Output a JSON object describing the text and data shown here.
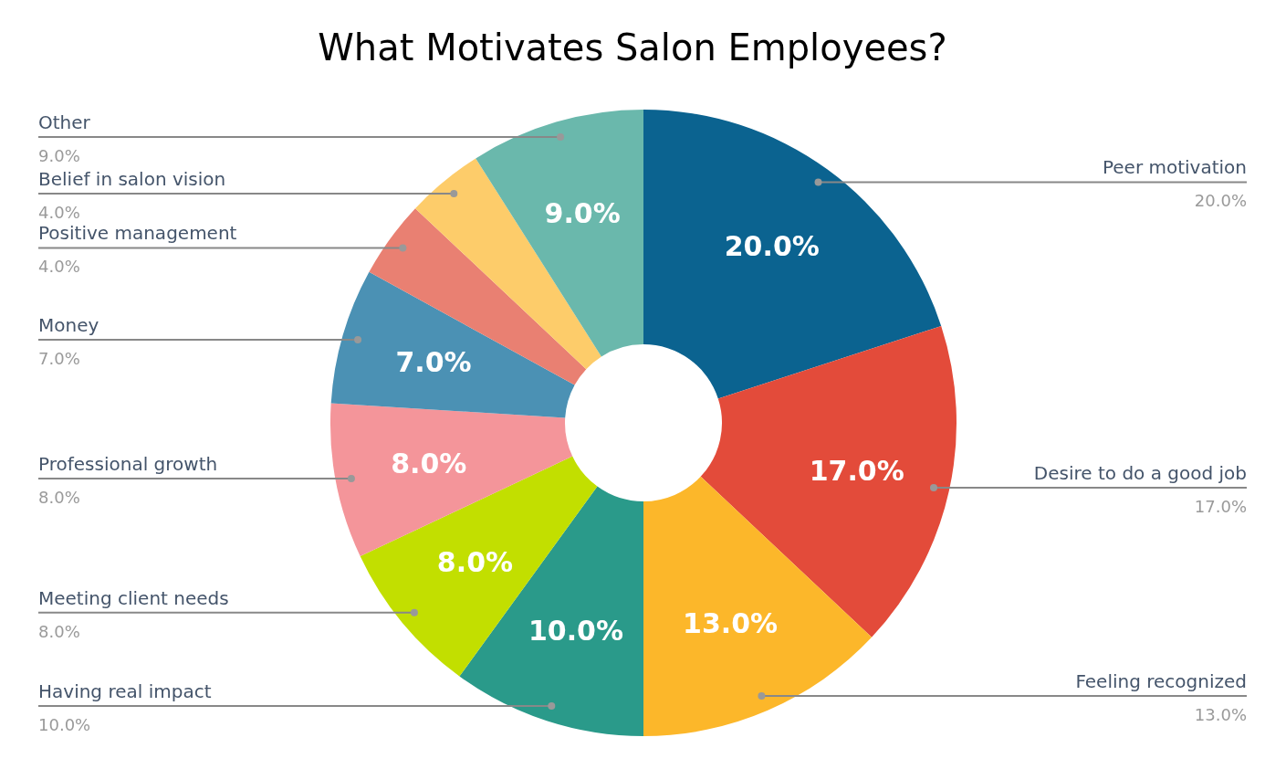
{
  "chart_data": {
    "type": "donut",
    "title": "What Motivates Salon Employees?",
    "categories": [
      "Peer motivation",
      "Desire to do a good job",
      "Feeling recognized",
      "Having real impact",
      "Meeting client needs",
      "Professional growth",
      "Money",
      "Positive management",
      "Belief in salon vision",
      "Other"
    ],
    "values": [
      20,
      17,
      13,
      10,
      8,
      8,
      7,
      4,
      4,
      9
    ],
    "colors": [
      "#0b6390",
      "#e34b3a",
      "#fcb72a",
      "#2a9a8a",
      "#c2df00",
      "#f4959a",
      "#4b91b4",
      "#e98072",
      "#fdcc6a",
      "#6ab8ac"
    ],
    "value_labels": [
      "20.0%",
      "17.0%",
      "13.0%",
      "10.0%",
      "8.0%",
      "8.0%",
      "7.0%",
      "4.0%",
      "4.0%",
      "9.0%"
    ],
    "legend": false
  }
}
